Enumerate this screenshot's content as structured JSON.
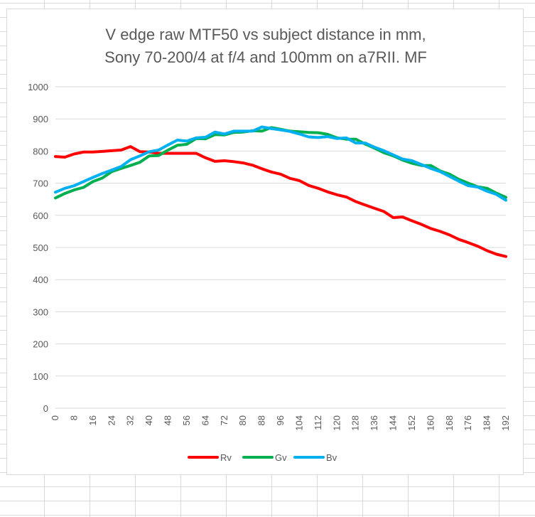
{
  "chart_data": {
    "type": "line",
    "title_line1": "V edge raw MTF50 vs subject distance in mm,",
    "title_line2": "Sony 70-200/4 at f/4 and 100mm on a7RII. MF",
    "ylim": [
      0,
      1000
    ],
    "yticks": [
      "0",
      "100",
      "200",
      "300",
      "400",
      "500",
      "600",
      "700",
      "800",
      "900",
      "1000"
    ],
    "x": [
      0,
      4,
      8,
      12,
      16,
      20,
      24,
      28,
      32,
      36,
      40,
      44,
      48,
      52,
      56,
      60,
      64,
      68,
      72,
      76,
      80,
      84,
      88,
      92,
      96,
      100,
      104,
      108,
      112,
      116,
      120,
      124,
      128,
      132,
      136,
      140,
      144,
      148,
      152,
      156,
      160,
      164,
      168,
      172,
      176,
      180,
      184,
      188,
      192
    ],
    "xtick_labels": [
      "0",
      "8",
      "16",
      "24",
      "32",
      "40",
      "48",
      "56",
      "64",
      "72",
      "80",
      "88",
      "96",
      "104",
      "112",
      "120",
      "128",
      "136",
      "144",
      "152",
      "160",
      "168",
      "176",
      "184",
      "192"
    ],
    "xtick_values": [
      0,
      8,
      16,
      24,
      32,
      40,
      48,
      56,
      64,
      72,
      80,
      88,
      96,
      104,
      112,
      120,
      128,
      136,
      144,
      152,
      160,
      168,
      176,
      184,
      192
    ],
    "grid": "horizontal",
    "legend_position": "bottom",
    "series": [
      {
        "name": "Rv",
        "color": "#ff0000",
        "values": [
          783,
          781,
          791,
          797,
          797,
          799,
          801,
          803,
          814,
          798,
          797,
          793,
          793,
          793,
          793,
          793,
          779,
          768,
          770,
          767,
          763,
          756,
          745,
          735,
          728,
          715,
          708,
          693,
          684,
          673,
          664,
          657,
          643,
          632,
          622,
          612,
          593,
          595,
          583,
          572,
          559,
          550,
          539,
          525,
          515,
          504,
          490,
          479,
          472
        ]
      },
      {
        "name": "Gv",
        "color": "#00b050",
        "values": [
          654,
          668,
          679,
          687,
          705,
          716,
          736,
          746,
          755,
          765,
          785,
          786,
          803,
          818,
          821,
          839,
          838,
          851,
          850,
          858,
          859,
          863,
          862,
          873,
          868,
          862,
          860,
          858,
          857,
          852,
          841,
          837,
          837,
          822,
          809,
          795,
          785,
          772,
          762,
          755,
          755,
          738,
          728,
          712,
          700,
          689,
          684,
          669,
          656
        ]
      },
      {
        "name": "Bv",
        "color": "#00b0f0",
        "values": [
          672,
          684,
          692,
          705,
          718,
          730,
          741,
          752,
          773,
          785,
          798,
          803,
          819,
          834,
          831,
          841,
          843,
          859,
          853,
          862,
          862,
          862,
          875,
          870,
          866,
          861,
          853,
          844,
          842,
          845,
          839,
          841,
          825,
          825,
          812,
          801,
          788,
          775,
          770,
          758,
          746,
          736,
          721,
          706,
          692,
          688,
          675,
          665,
          647
        ]
      }
    ]
  }
}
